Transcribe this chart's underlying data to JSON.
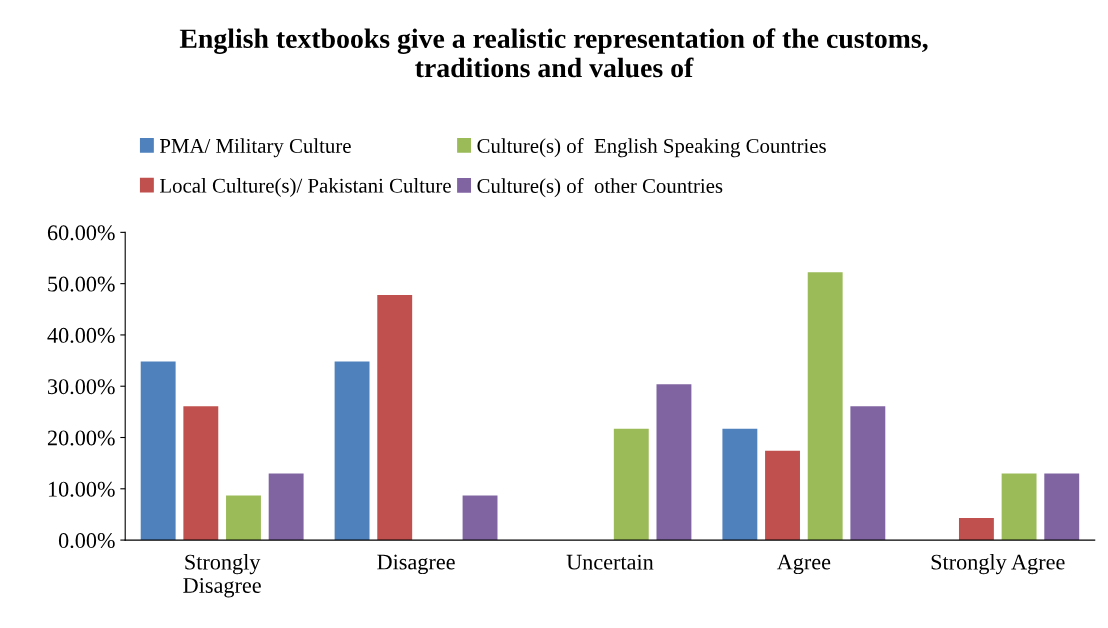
{
  "chart_data": {
    "type": "bar",
    "title": "English textbooks give a realistic representation of the customs,\ntraditions and values of",
    "categories": [
      "Strongly\nDisagree",
      "Disagree",
      "Uncertain",
      "Agree",
      "Strongly Agree"
    ],
    "series": [
      {
        "name": "PMA/ Military Culture",
        "color": "#4f81bd",
        "values": [
          34.8,
          34.8,
          0,
          21.7,
          0
        ]
      },
      {
        "name": "Local Culture(s)/ Pakistani Culture",
        "color": "#c0504d",
        "values": [
          26.1,
          47.8,
          0,
          17.4,
          4.3
        ]
      },
      {
        "name": "Culture(s) of  English Speaking Countries",
        "color": "#9bbb59",
        "values": [
          8.7,
          0,
          21.7,
          52.2,
          13.0
        ]
      },
      {
        "name": "Culture(s) of  other Countries",
        "color": "#8064a2",
        "values": [
          13.0,
          8.7,
          30.4,
          26.1,
          13.0
        ]
      }
    ],
    "ylim": [
      0,
      60
    ],
    "yticks": [
      {
        "value": 0,
        "label": "0.00%"
      },
      {
        "value": 10,
        "label": "10.00%"
      },
      {
        "value": 20,
        "label": "20.00%"
      },
      {
        "value": 30,
        "label": "30.00%"
      },
      {
        "value": 40,
        "label": "40.00%"
      },
      {
        "value": 50,
        "label": "50.00%"
      },
      {
        "value": 60,
        "label": "60.00%"
      }
    ],
    "grid": false,
    "legend": "top"
  }
}
